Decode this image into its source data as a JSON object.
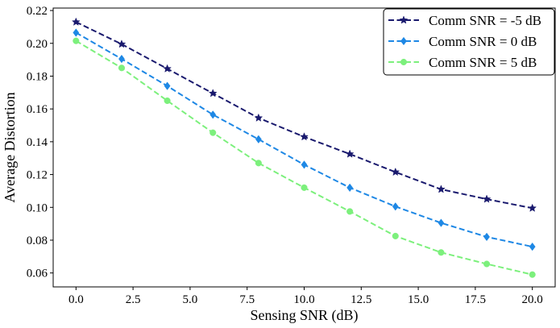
{
  "chart_data": {
    "type": "line",
    "title": "",
    "xlabel": "Sensing SNR (dB)",
    "ylabel": "Average Distortion",
    "xlim": [
      -1.0,
      21.0
    ],
    "ylim": [
      0.0515,
      0.2215
    ],
    "x": [
      0,
      2,
      4,
      6,
      8,
      10,
      12,
      14,
      16,
      18,
      20
    ],
    "x_ticks": [
      0.0,
      2.5,
      5.0,
      7.5,
      10.0,
      12.5,
      15.0,
      17.5,
      20.0
    ],
    "x_tick_labels": [
      "0.0",
      "2.5",
      "5.0",
      "7.5",
      "10.0",
      "12.5",
      "15.0",
      "17.5",
      "20.0"
    ],
    "y_ticks": [
      0.06,
      0.08,
      0.1,
      0.12,
      0.14,
      0.16,
      0.18,
      0.2,
      0.22
    ],
    "y_tick_labels": [
      "0.06",
      "0.08",
      "0.10",
      "0.12",
      "0.14",
      "0.16",
      "0.18",
      "0.20",
      "0.22"
    ],
    "grid": false,
    "legend_position": "top-right",
    "series": [
      {
        "name": "Comm SNR = -5 dB",
        "color": "#1a1a6e",
        "marker": "star",
        "values": [
          0.213,
          0.1995,
          0.1845,
          0.1695,
          0.1545,
          0.143,
          0.1325,
          0.1215,
          0.111,
          0.105,
          0.0995
        ]
      },
      {
        "name": "Comm SNR = 0 dB",
        "color": "#1e88e5",
        "marker": "diamond",
        "values": [
          0.2065,
          0.1905,
          0.174,
          0.1565,
          0.1415,
          0.126,
          0.112,
          0.1005,
          0.0905,
          0.082,
          0.076
        ]
      },
      {
        "name": "Comm SNR = 5 dB",
        "color": "#7cf07c",
        "marker": "circle",
        "values": [
          0.2015,
          0.185,
          0.165,
          0.1455,
          0.127,
          0.112,
          0.0975,
          0.0825,
          0.0725,
          0.0655,
          0.059
        ]
      }
    ]
  }
}
